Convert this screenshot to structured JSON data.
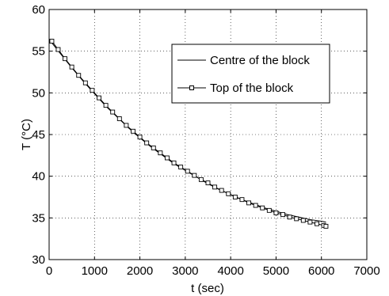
{
  "chart_data": {
    "type": "line",
    "title": "",
    "xlabel": "t (sec)",
    "ylabel": "T (°C)",
    "xlim": [
      0,
      7000
    ],
    "ylim": [
      30,
      60
    ],
    "x_ticks": [
      0,
      1000,
      2000,
      3000,
      4000,
      5000,
      6000,
      7000
    ],
    "y_ticks": [
      30,
      35,
      40,
      45,
      50,
      55,
      60
    ],
    "grid": true,
    "legend_position": "top-right",
    "series": [
      {
        "name": "Centre of the block",
        "marker": "none",
        "x": [
          60,
          250,
          500,
          750,
          1000,
          1250,
          1500,
          1750,
          2000,
          2250,
          2500,
          2750,
          3000,
          3250,
          3500,
          3750,
          4000,
          4250,
          4500,
          4750,
          5000,
          5250,
          5500,
          5750,
          6000,
          6100
        ],
        "y": [
          56.0,
          54.7,
          53.0,
          51.4,
          49.9,
          48.4,
          47.1,
          45.8,
          44.6,
          43.5,
          42.5,
          41.5,
          40.7,
          39.9,
          39.1,
          38.4,
          37.8,
          37.2,
          36.7,
          36.2,
          35.8,
          35.4,
          35.1,
          34.8,
          34.6,
          34.5
        ]
      },
      {
        "name": "Top of the block",
        "marker": "square",
        "x": [
          60,
          200,
          350,
          500,
          650,
          800,
          950,
          1100,
          1250,
          1400,
          1550,
          1700,
          1850,
          2000,
          2150,
          2300,
          2450,
          2600,
          2750,
          2900,
          3050,
          3200,
          3350,
          3500,
          3650,
          3800,
          3950,
          4100,
          4250,
          4400,
          4550,
          4700,
          4850,
          5000,
          5150,
          5300,
          5450,
          5600,
          5750,
          5900,
          6050,
          6100
        ],
        "y": [
          56.2,
          55.2,
          54.1,
          53.1,
          52.1,
          51.2,
          50.3,
          49.4,
          48.5,
          47.7,
          46.9,
          46.1,
          45.4,
          44.7,
          44.0,
          43.4,
          42.8,
          42.2,
          41.6,
          41.1,
          40.6,
          40.1,
          39.6,
          39.2,
          38.7,
          38.3,
          37.9,
          37.5,
          37.2,
          36.8,
          36.5,
          36.2,
          35.9,
          35.6,
          35.4,
          35.1,
          34.9,
          34.7,
          34.5,
          34.3,
          34.1,
          34.0
        ]
      }
    ]
  }
}
